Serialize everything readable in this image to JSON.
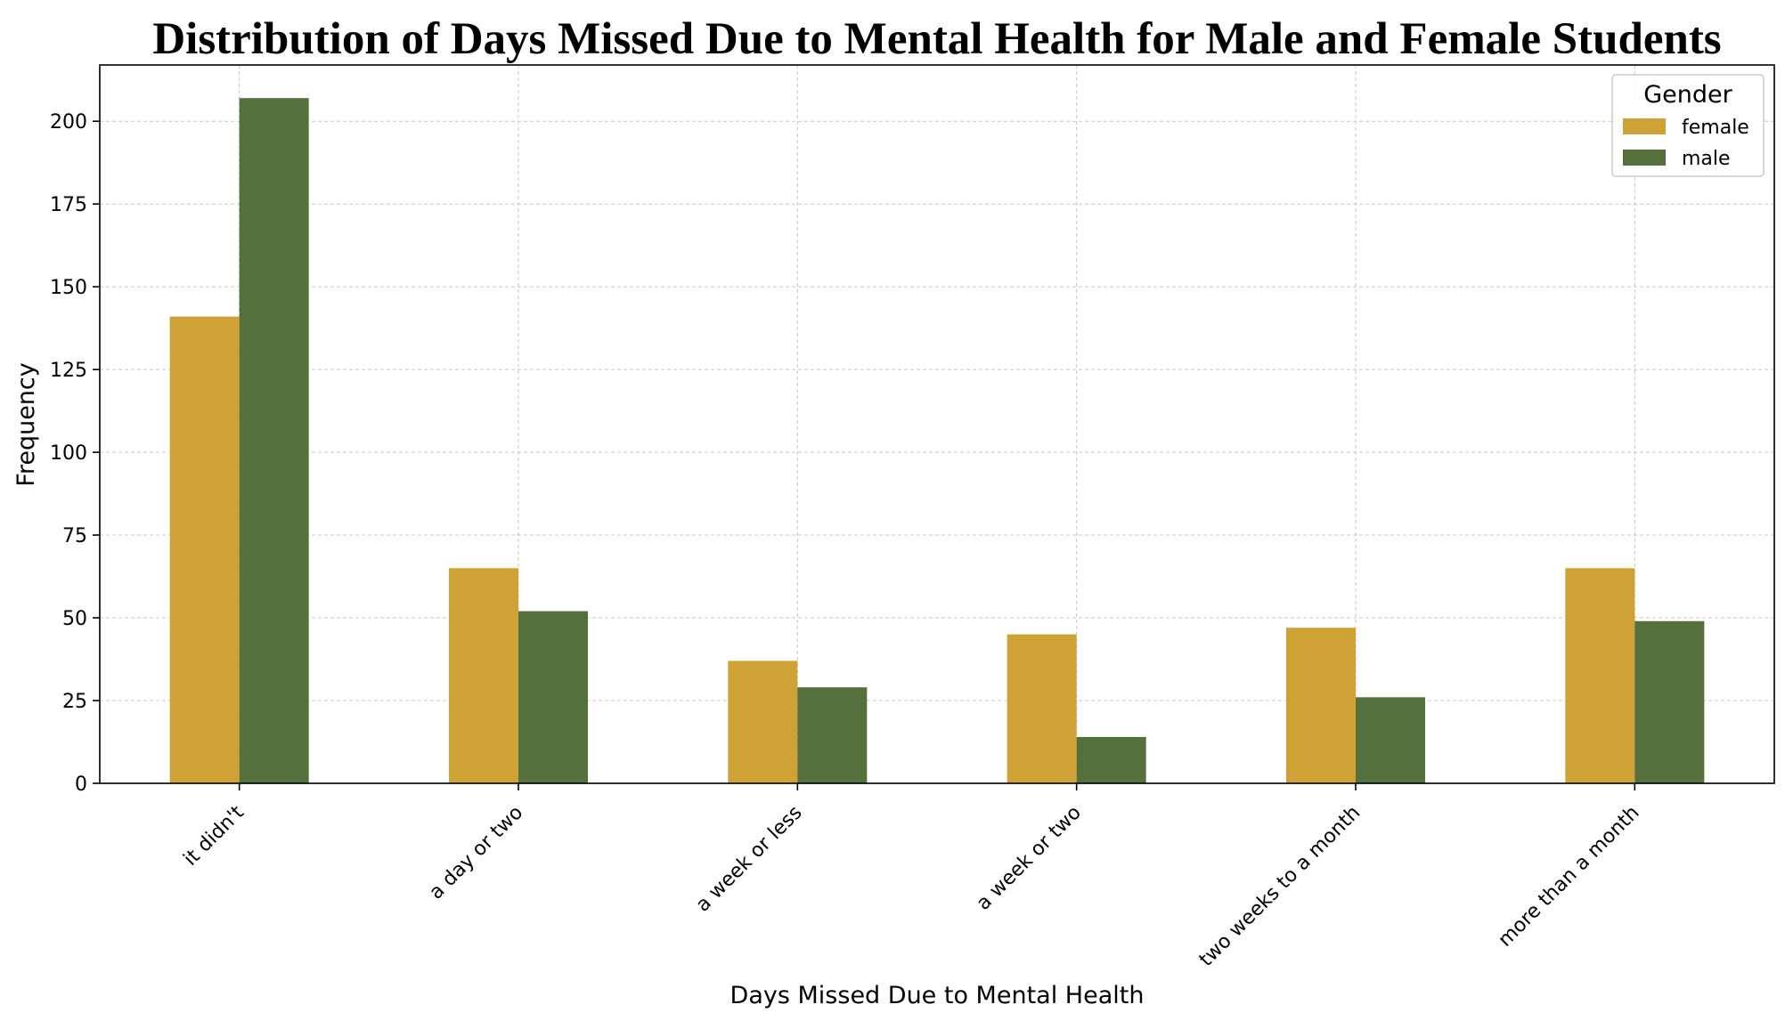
{
  "chart_data": {
    "type": "bar",
    "title": "Distribution of Days Missed Due to Mental Health for Male and Female Students",
    "xlabel": "Days Missed Due to Mental Health",
    "ylabel": "Frequency",
    "categories": [
      "it didn't",
      "a day or two",
      "a week or less",
      "a week or two",
      "two weeks to a month",
      "more than a month"
    ],
    "series": [
      {
        "name": "female",
        "values": [
          141,
          65,
          37,
          45,
          47,
          65
        ],
        "color": "#CFA236"
      },
      {
        "name": "male",
        "values": [
          207,
          52,
          29,
          14,
          26,
          49
        ],
        "color": "#54703C"
      }
    ],
    "ylim": [
      0,
      217
    ],
    "yticks": [
      0,
      25,
      50,
      75,
      100,
      125,
      150,
      175,
      200
    ],
    "grid": true,
    "legend": {
      "title": "Gender",
      "position": "top-right"
    }
  }
}
